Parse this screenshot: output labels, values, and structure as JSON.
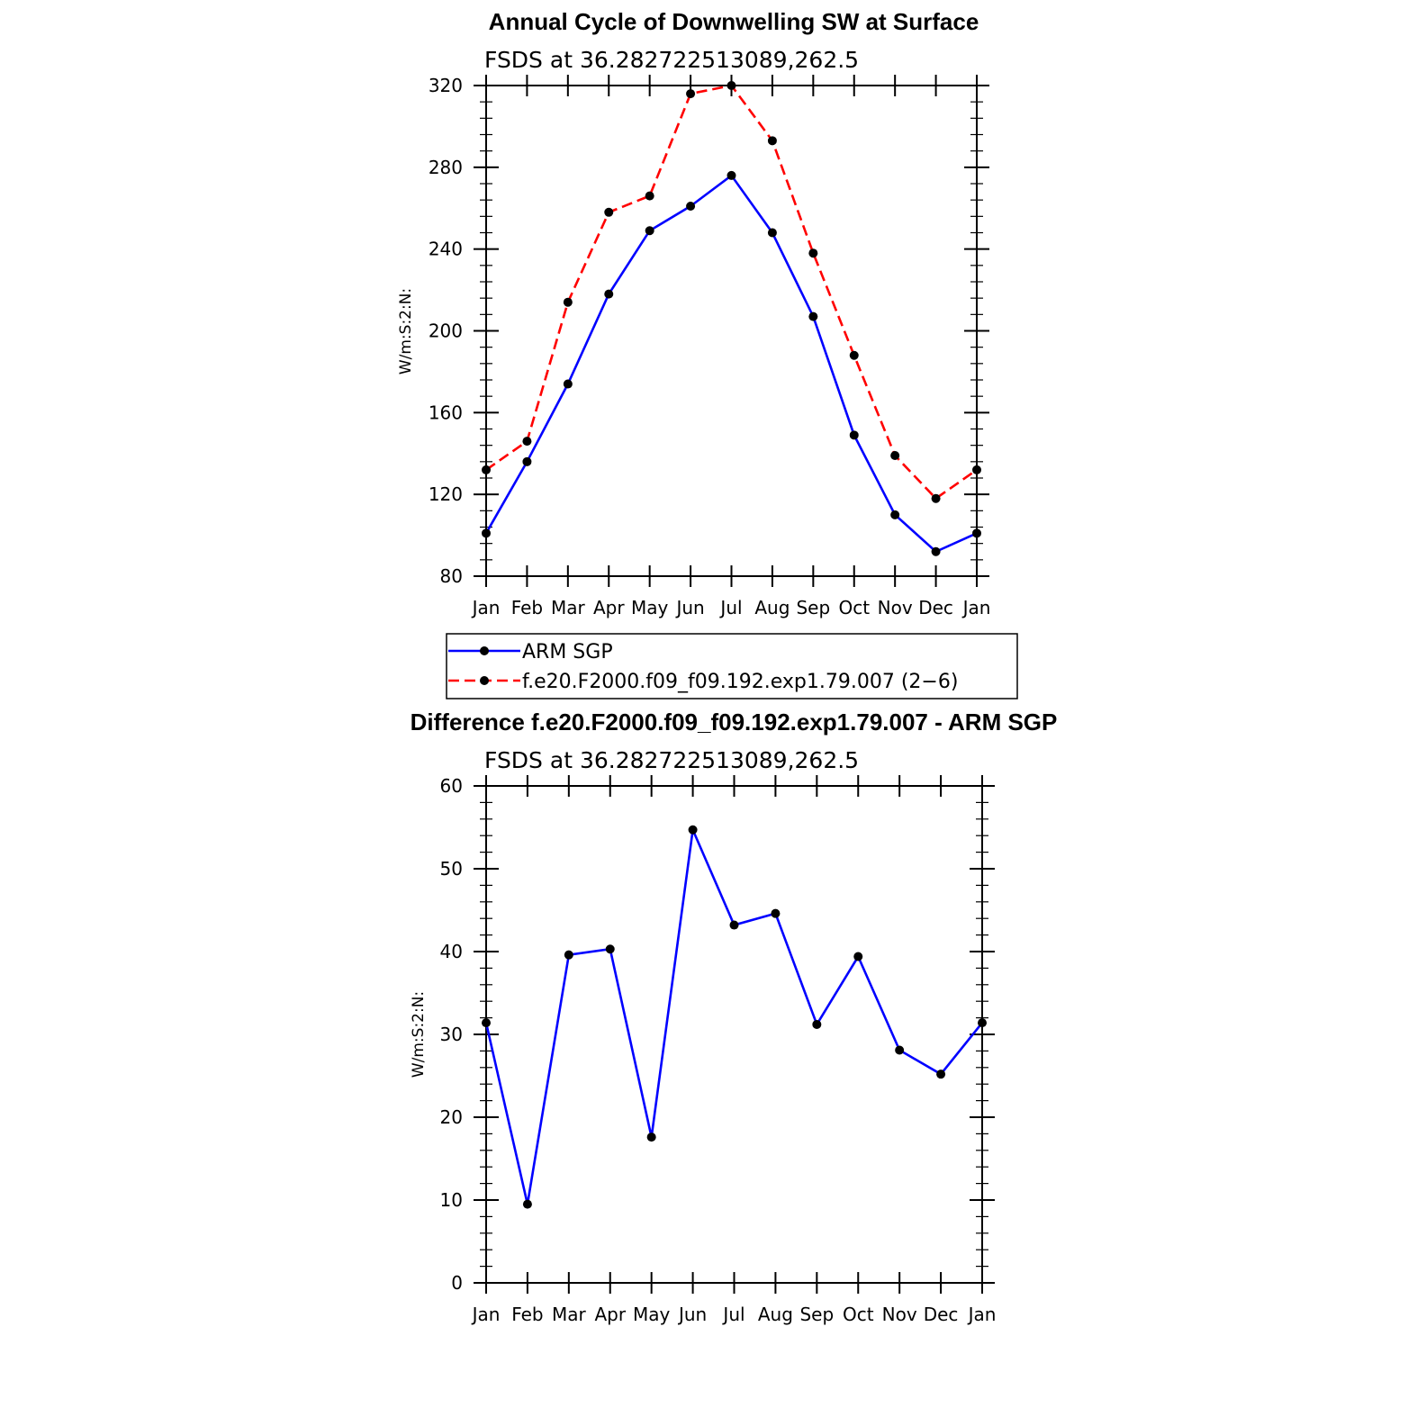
{
  "chart_data": [
    {
      "type": "line",
      "title": "Annual Cycle of Downwelling SW at Surface",
      "subtitle": "FSDS at 36.282722513089,262.5",
      "ylabel": "W/m:S:2:N:",
      "xlabel": "",
      "categories": [
        "Jan",
        "Feb",
        "Mar",
        "Apr",
        "May",
        "Jun",
        "Jul",
        "Aug",
        "Sep",
        "Oct",
        "Nov",
        "Dec",
        "Jan"
      ],
      "ylim": [
        80,
        320
      ],
      "yticks": [
        80,
        120,
        160,
        200,
        240,
        280,
        320
      ],
      "series": [
        {
          "name": "ARM SGP",
          "color": "#0000ff",
          "dash": "solid",
          "values": [
            101,
            136,
            174,
            218,
            249,
            261,
            276,
            248,
            207,
            149,
            110,
            92,
            101
          ]
        },
        {
          "name": "f.e20.F2000.f09_f09.192.exp1.79.007 (2−6)",
          "color": "#ff0000",
          "dash": "dashed",
          "values": [
            132,
            146,
            214,
            258,
            266,
            316,
            320,
            293,
            238,
            188,
            139,
            118,
            132
          ]
        }
      ],
      "legend": [
        "ARM SGP",
        "f.e20.F2000.f09_f09.192.exp1.79.007 (2−6)"
      ],
      "legend_position": "below"
    },
    {
      "type": "line",
      "title": "Difference f.e20.F2000.f09_f09.192.exp1.79.007 - ARM SGP",
      "subtitle": "FSDS at 36.282722513089,262.5",
      "ylabel": "W/m:S:2:N:",
      "xlabel": "",
      "categories": [
        "Jan",
        "Feb",
        "Mar",
        "Apr",
        "May",
        "Jun",
        "Jul",
        "Aug",
        "Sep",
        "Oct",
        "Nov",
        "Dec",
        "Jan"
      ],
      "ylim": [
        0,
        60
      ],
      "yticks": [
        0,
        10,
        20,
        30,
        40,
        50,
        60
      ],
      "series": [
        {
          "name": "Difference",
          "color": "#0000ff",
          "dash": "solid",
          "values": [
            31.4,
            9.5,
            39.6,
            40.3,
            17.6,
            54.7,
            43.2,
            44.6,
            31.2,
            39.4,
            28.1,
            25.2,
            31.4
          ]
        }
      ]
    }
  ]
}
